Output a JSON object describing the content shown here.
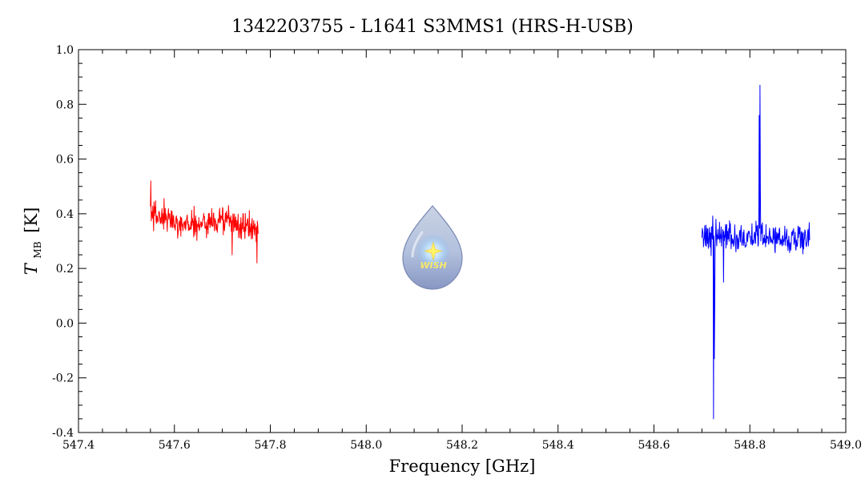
{
  "chart_data": {
    "type": "line",
    "title": "1342203755 - L1641 S3MMS1 (HRS-H-USB)",
    "xlabel": "Frequency [GHz]",
    "ylabel": {
      "symbol": "T",
      "subscript": "MB",
      "unit": "[K]"
    },
    "xlim": [
      547.4,
      549.0
    ],
    "ylim": [
      -0.4,
      1.0
    ],
    "xticks": [
      "547.4",
      "547.6",
      "547.8",
      "548.0",
      "548.2",
      "548.4",
      "548.6",
      "548.8",
      "549.0"
    ],
    "yticks": [
      "-0.4",
      "-0.2",
      "0.0",
      "0.2",
      "0.4",
      "0.6",
      "0.8",
      "1.0"
    ],
    "grid": false,
    "logo_text": "WISH",
    "series": [
      {
        "color": "#ff0000",
        "x_range": [
          547.55,
          547.775
        ],
        "level_points": [
          [
            547.55,
            0.4
          ],
          [
            547.6,
            0.37
          ],
          [
            547.65,
            0.36
          ],
          [
            547.7,
            0.38
          ],
          [
            547.75,
            0.35
          ],
          [
            547.775,
            0.35
          ]
        ],
        "noise": 0.03,
        "features": [
          {
            "x": 547.551,
            "y": 0.52
          },
          {
            "x": 547.72,
            "y": 0.25
          },
          {
            "x": 547.7725,
            "y": 0.22
          }
        ]
      },
      {
        "color": "#0000ff",
        "x_range": [
          548.7,
          548.925
        ],
        "level_points": [
          [
            548.7,
            0.32
          ],
          [
            548.75,
            0.31
          ],
          [
            548.8,
            0.32
          ],
          [
            548.85,
            0.31
          ],
          [
            548.925,
            0.31
          ]
        ],
        "noise": 0.03,
        "features": [
          {
            "x": 548.7245,
            "y": -0.35
          },
          {
            "x": 548.7258,
            "y": -0.13
          },
          {
            "x": 548.727,
            "y": 0.05
          },
          {
            "x": 548.745,
            "y": 0.15
          },
          {
            "x": 548.8195,
            "y": 0.76
          },
          {
            "x": 548.8208,
            "y": 0.87
          },
          {
            "x": 548.8222,
            "y": 0.48
          }
        ]
      }
    ]
  }
}
